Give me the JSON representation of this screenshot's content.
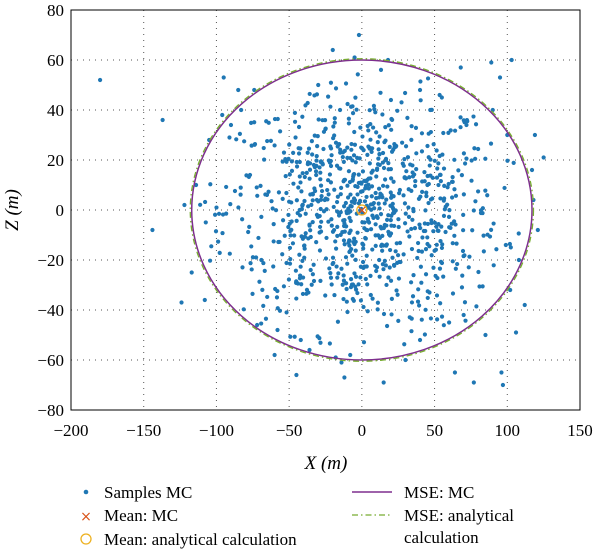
{
  "chart_data": {
    "type": "scatter",
    "title": "",
    "xlabel": "X (m)",
    "ylabel": "Z (m)",
    "xlim": [
      -200,
      150
    ],
    "ylim": [
      -80,
      80
    ],
    "xticks": [
      -200,
      -150,
      -100,
      -50,
      0,
      50,
      100,
      150
    ],
    "yticks": [
      -80,
      -60,
      -40,
      -20,
      0,
      20,
      40,
      60,
      80
    ],
    "grid": true,
    "grid_style": "dotted",
    "legend_position": "bottom",
    "colors": {
      "samples": "#1f77b4",
      "mean_mc": "#d95319",
      "mean_analytical": "#edb120",
      "mse_mc": "#7e2f8e",
      "mse_analytical": "#77ac30"
    },
    "series": [
      {
        "name": "Samples MC",
        "marker": "dot",
        "points": [
          [
            -180,
            52
          ],
          [
            -137,
            36
          ],
          [
            -144,
            -8
          ],
          [
            -122,
            2
          ],
          [
            -124,
            -37
          ],
          [
            -108,
            -36
          ],
          [
            -95,
            53
          ],
          [
            -90,
            34
          ],
          [
            -85,
            48
          ],
          [
            -74,
            48
          ],
          [
            -42,
            -52
          ],
          [
            -36,
            -56
          ],
          [
            -45,
            -66
          ],
          [
            -18,
            -59
          ],
          [
            -12,
            -67
          ],
          [
            -14,
            -61
          ],
          [
            -5,
            61
          ],
          [
            -2,
            70
          ],
          [
            -20,
            64
          ],
          [
            -8,
            -58
          ],
          [
            30,
            -60
          ],
          [
            15,
            -69
          ],
          [
            18,
            60
          ],
          [
            40,
            -52
          ],
          [
            64,
            -65
          ],
          [
            77,
            -69
          ],
          [
            96,
            -65
          ],
          [
            97,
            -70
          ],
          [
            102,
            -32
          ],
          [
            106,
            -49
          ],
          [
            103,
            60
          ],
          [
            95,
            53
          ],
          [
            89,
            59
          ],
          [
            68,
            57
          ],
          [
            119,
            30
          ],
          [
            125,
            21
          ],
          [
            117,
            16
          ],
          [
            121,
            -8
          ],
          [
            99,
            -14
          ],
          [
            118,
            4
          ],
          [
            -117,
            -25
          ],
          [
            -114,
            10
          ],
          [
            -105,
            28
          ],
          [
            -96,
            38
          ],
          [
            -83,
            40
          ],
          [
            -72,
            -46
          ],
          [
            -60,
            -58
          ],
          [
            -58,
            -48
          ],
          [
            -30,
            50
          ],
          [
            -15,
            40
          ],
          [
            20,
            44
          ],
          [
            40,
            48
          ],
          [
            55,
            45
          ],
          [
            70,
            -42
          ],
          [
            85,
            -50
          ],
          [
            90,
            40
          ],
          [
            100,
            30
          ],
          [
            108,
            -20
          ],
          [
            112,
            -38
          ],
          [
            60,
            -45
          ]
        ]
      },
      {
        "name": "Mean: MC",
        "marker": "x",
        "points": [
          [
            0,
            0
          ]
        ]
      },
      {
        "name": "Mean: analytical calculation",
        "marker": "circle",
        "points": [
          [
            0,
            0
          ]
        ]
      },
      {
        "name": "MSE: MC",
        "type": "ellipse",
        "center": [
          0,
          0
        ],
        "semi_axes": [
          117,
          60
        ]
      },
      {
        "name": "MSE: analytical calculation",
        "type": "ellipse",
        "center": [
          0,
          0
        ],
        "semi_axes": [
          118,
          60.5
        ]
      }
    ],
    "legend": [
      "Samples MC",
      "Mean: MC",
      "Mean: analytical calculation",
      "MSE: MC",
      "MSE: analytical calculation"
    ]
  }
}
